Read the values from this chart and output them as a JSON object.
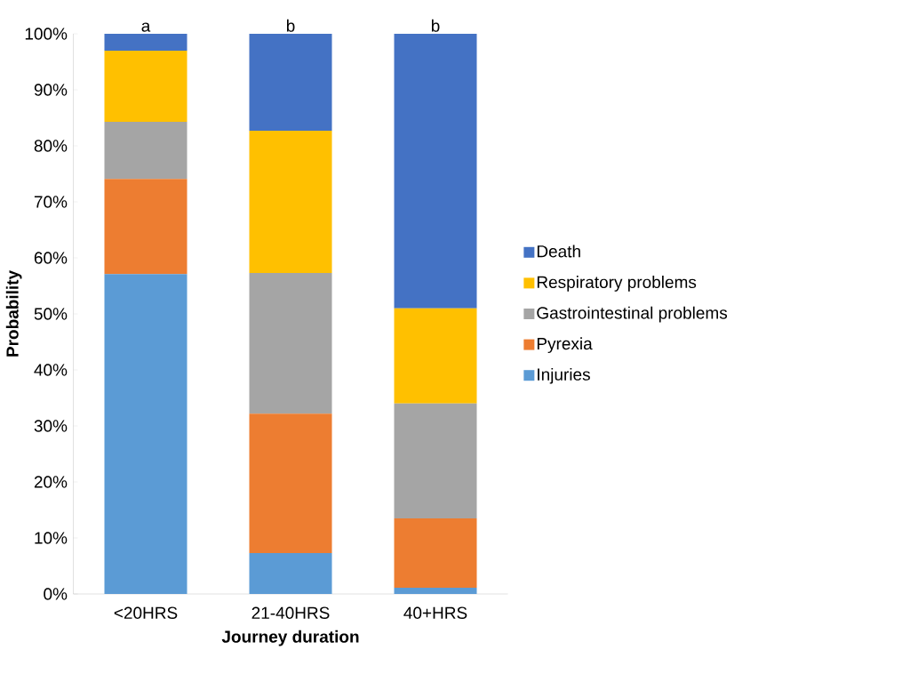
{
  "chart_data": {
    "type": "bar",
    "stacked": true,
    "xlabel": "Journey duration",
    "ylabel": "Probability",
    "categories": [
      "<20HRS",
      "21-40HRS",
      "40+HRS"
    ],
    "series": [
      {
        "name": "Injuries",
        "color": "#5b9bd5",
        "values": [
          57.1,
          7.3,
          1.1
        ]
      },
      {
        "name": "Pyrexia",
        "color": "#ed7d31",
        "values": [
          17.0,
          24.9,
          12.4
        ]
      },
      {
        "name": "Gastrointestinal problems",
        "color": "#a5a5a5",
        "values": [
          10.2,
          25.1,
          20.5
        ]
      },
      {
        "name": "Respiratory problems",
        "color": "#ffc000",
        "values": [
          12.7,
          25.4,
          17.0
        ]
      },
      {
        "name": "Death",
        "color": "#4472c4",
        "values": [
          3.0,
          17.3,
          49.0
        ]
      }
    ],
    "ylim": [
      0,
      100
    ],
    "yticks": [
      {
        "value": 0,
        "label": "0%"
      },
      {
        "value": 10,
        "label": "10%"
      },
      {
        "value": 20,
        "label": "20%"
      },
      {
        "value": 30,
        "label": "30%"
      },
      {
        "value": 40,
        "label": "40%"
      },
      {
        "value": 50,
        "label": "50%"
      },
      {
        "value": 60,
        "label": "60%"
      },
      {
        "value": 70,
        "label": "70%"
      },
      {
        "value": 80,
        "label": "80%"
      },
      {
        "value": 90,
        "label": "90%"
      },
      {
        "value": 100,
        "label": "100%"
      }
    ],
    "legend": "right",
    "annotations": [
      {
        "text": "a",
        "x": "<20HRS",
        "y": 100
      },
      {
        "text": "b",
        "x": "21-40HRS",
        "y": 100
      },
      {
        "text": "b",
        "x": "40+HRS",
        "y": 100
      }
    ]
  }
}
